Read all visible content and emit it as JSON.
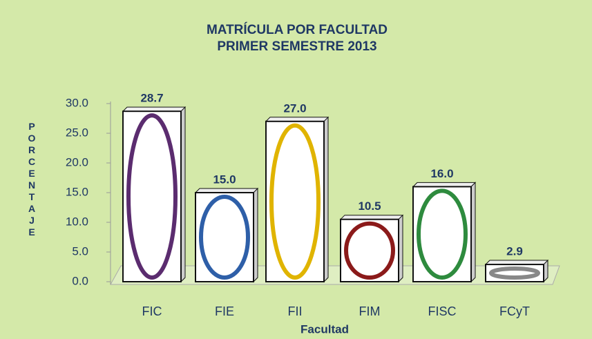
{
  "chart_data": {
    "type": "bar",
    "title": "MATRÍCULA POR FACULTAD",
    "subtitle": "PRIMER SEMESTRE 2013",
    "y_label": "PORCENTAJE",
    "x_label": "Facultad",
    "categories": [
      "FIC",
      "FIE",
      "FII",
      "FIM",
      "FISC",
      "FCyT"
    ],
    "values": [
      28.7,
      15.0,
      27.0,
      10.5,
      16.0,
      2.9
    ],
    "value_labels": [
      "28.7",
      "15.0",
      "27.0",
      "10.5",
      "16.0",
      "2.9"
    ],
    "ylim": [
      0,
      30
    ],
    "yticks": [
      {
        "value": 0,
        "label": "0.0"
      },
      {
        "value": 5,
        "label": "5.0"
      },
      {
        "value": 10,
        "label": "10.0"
      },
      {
        "value": 15,
        "label": "15.0"
      },
      {
        "value": 20,
        "label": "20.0"
      },
      {
        "value": 25,
        "label": "25.0"
      },
      {
        "value": 30,
        "label": "30.0"
      }
    ],
    "color": "#ffffff"
  }
}
